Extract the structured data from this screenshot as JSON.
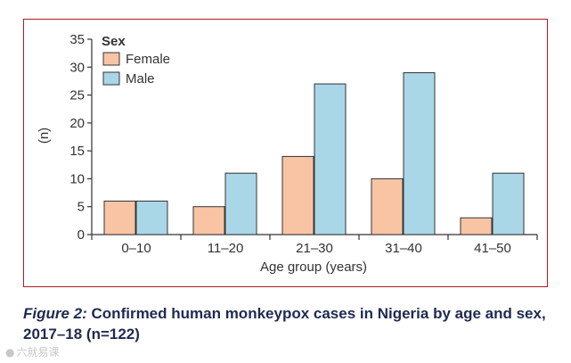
{
  "chart_data": {
    "type": "bar",
    "title": "",
    "xlabel": "Age group (years)",
    "ylabel": "(n)",
    "ylim": [
      0,
      35
    ],
    "yticks": [
      0,
      5,
      10,
      15,
      20,
      25,
      30,
      35
    ],
    "categories": [
      "0–10",
      "11–20",
      "21–30",
      "31–40",
      "41–50"
    ],
    "legend": {
      "title": "Sex",
      "placement": "top-left"
    },
    "series": [
      {
        "name": "Female",
        "color": "#f8c4a4",
        "values": [
          6,
          5,
          14,
          10,
          3
        ]
      },
      {
        "name": "Male",
        "color": "#a9d7e8",
        "values": [
          6,
          11,
          27,
          29,
          11
        ]
      }
    ]
  },
  "caption": {
    "figure_label": "Figure 2:",
    "text": " Confirmed human monkeypox cases in Nigeria by age and sex, 2017–18 (n=122)"
  },
  "watermark": {
    "icon": "wechat-icon",
    "text": "六就易课"
  },
  "colors": {
    "frame": "#b01a24",
    "caption": "#1f2a52",
    "axis": "#333333"
  }
}
